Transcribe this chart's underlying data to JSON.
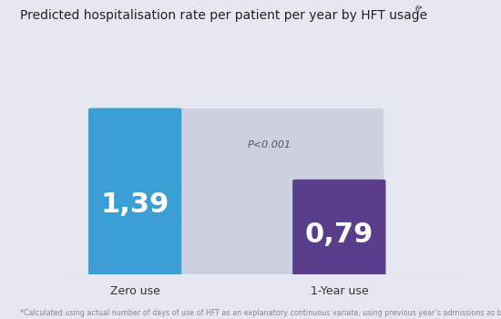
{
  "title": "Predicted hospitalisation rate per patient per year by HFT usage",
  "title_superscript": "6*",
  "footnote": "*Calculated using actual number of days of use of HFT as an explanatory continuous variate, using previous year’s admissions as baseline covariate",
  "categories": [
    "Zero use",
    "1-Year use"
  ],
  "values": [
    1.39,
    0.79
  ],
  "labels": [
    "1,39",
    "0,79"
  ],
  "bar_colors": [
    "#3B9FD6",
    "#5A3E8C"
  ],
  "connector_color": "#CDD1DF",
  "background_color": "#E5E8F0",
  "pvalue_text": "P<0.001",
  "pvalue_color": "#555555",
  "bar_label_color": "#FFFFFF",
  "axis_line_color": "#AAAAAA",
  "category_label_color": "#333333",
  "title_color": "#222222",
  "footnote_color": "#888888",
  "bar_width": 0.13,
  "x_positions": [
    0.3,
    0.62
  ],
  "ylim": [
    0,
    1.85
  ],
  "xlim": [
    0.12,
    0.85
  ],
  "bar_label_fontsize": 22,
  "title_fontsize": 10,
  "category_fontsize": 9,
  "pvalue_fontsize": 8,
  "footnote_fontsize": 5.8
}
